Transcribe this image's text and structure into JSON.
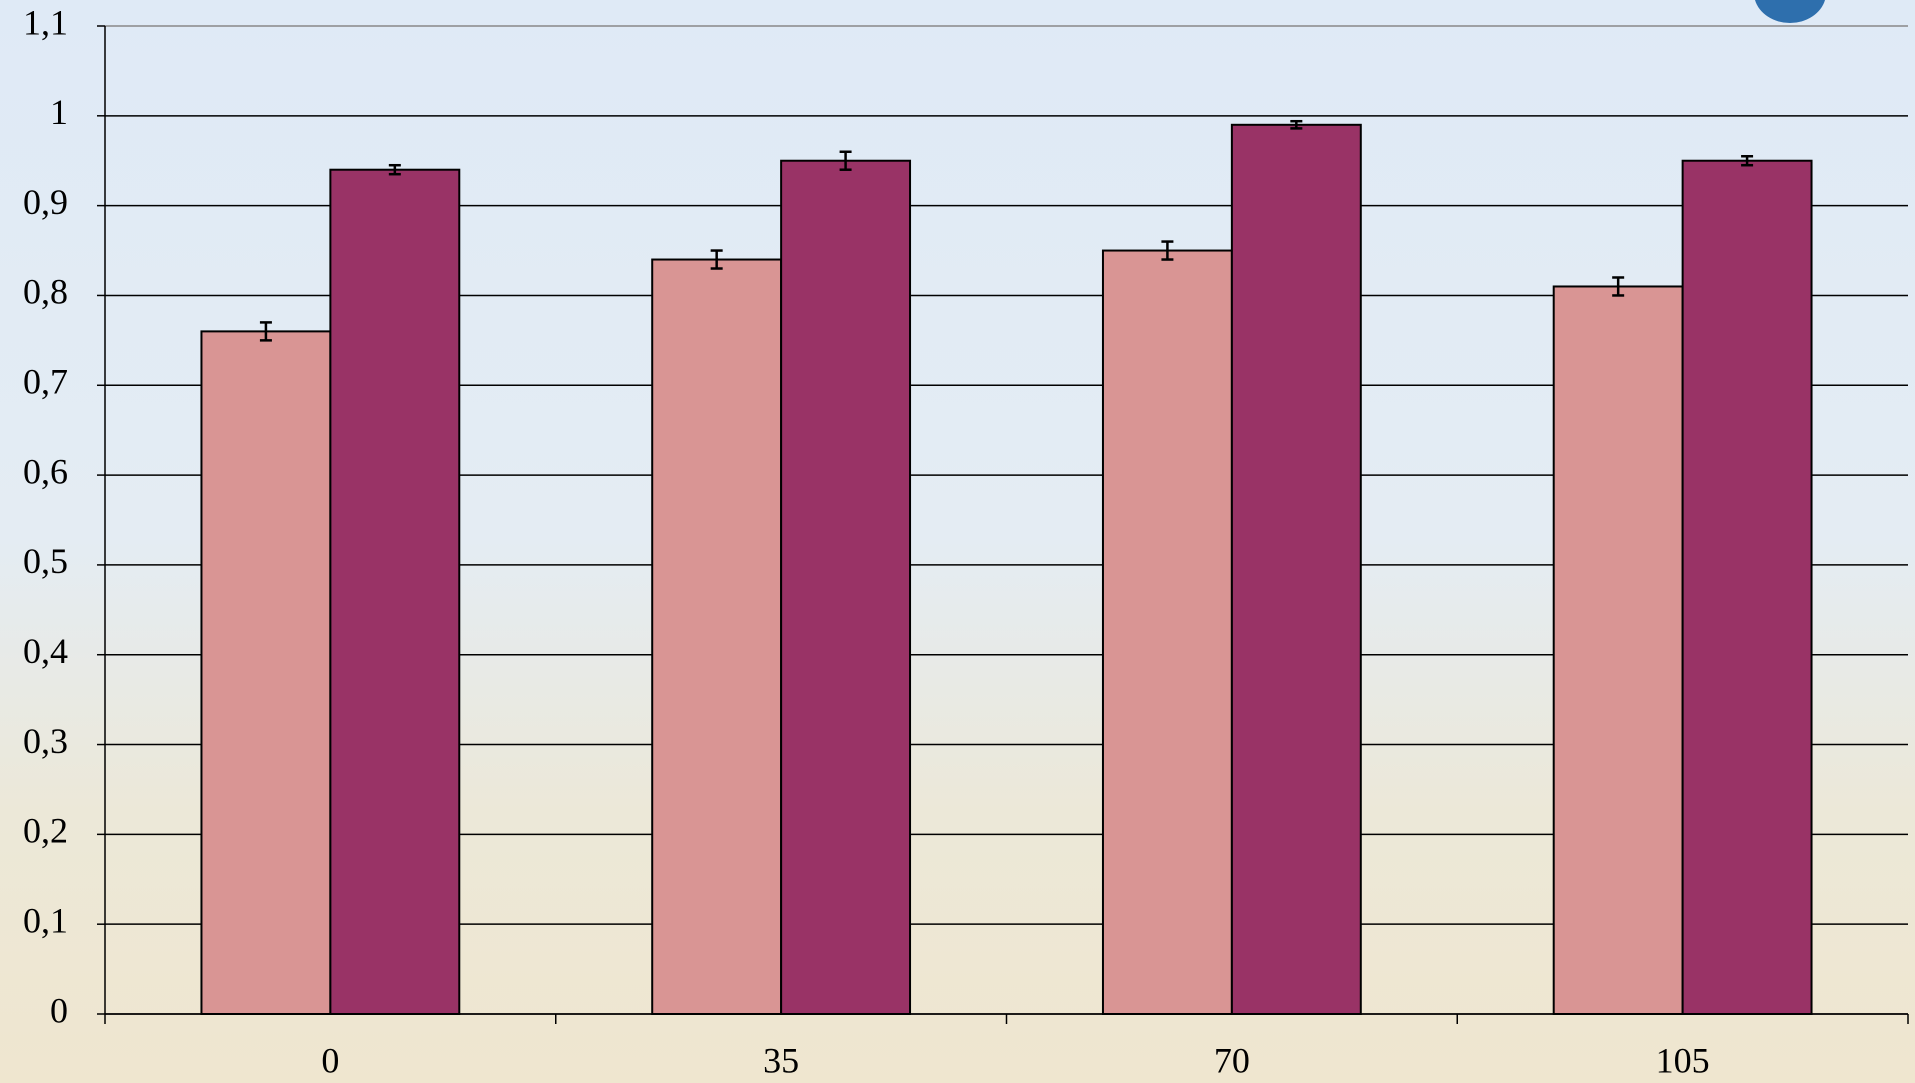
{
  "chart_data": {
    "type": "bar",
    "categories": [
      "0",
      "35",
      "70",
      "105"
    ],
    "series": [
      {
        "color": "#d99594",
        "values": [
          0.76,
          0.84,
          0.85,
          0.81
        ],
        "errors": [
          0.01,
          0.01,
          0.01,
          0.01
        ]
      },
      {
        "color": "#993366",
        "values": [
          0.94,
          0.95,
          0.99,
          0.95
        ],
        "errors": [
          0.005,
          0.01,
          0.004,
          0.005
        ]
      }
    ],
    "ylim": [
      0,
      1.1
    ],
    "yticks": [
      0,
      {
        "value": 0.1,
        "label": "0,1"
      },
      {
        "value": 0.2,
        "label": "0,2"
      },
      {
        "value": 0.3,
        "label": "0,3"
      },
      {
        "value": 0.4,
        "label": "0,4"
      },
      {
        "value": 0.5,
        "label": "0,5"
      },
      {
        "value": 0.6,
        "label": "0,6"
      },
      {
        "value": 0.7,
        "label": "0,7"
      },
      {
        "value": 0.8,
        "label": "0,8"
      },
      {
        "value": 0.9,
        "label": "0,9"
      },
      1,
      {
        "value": 1.1,
        "label": "1,1"
      }
    ],
    "grid": true
  }
}
